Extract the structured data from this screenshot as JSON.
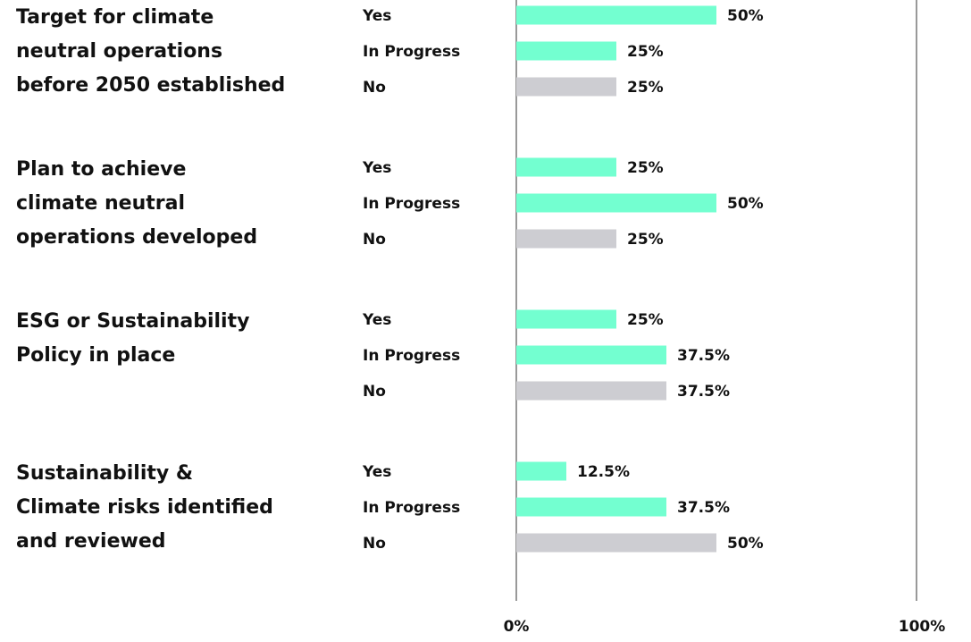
{
  "chart_data": {
    "type": "bar",
    "orientation": "horizontal",
    "categories": [
      [
        "Target for climate",
        "neutral operations",
        "before 2050 established"
      ],
      [
        "Plan to achieve",
        "climate neutral",
        "operations developed"
      ],
      [
        "ESG or Sustainability",
        "Policy in place"
      ],
      [
        "Sustainability &",
        "Climate risks identified",
        "and reviewed"
      ]
    ],
    "series": [
      {
        "name": "Yes",
        "color": "#73ffd0",
        "values": [
          50,
          25,
          25,
          12.5
        ],
        "value_labels": [
          "50%",
          "25%",
          "25%",
          "12.5%"
        ]
      },
      {
        "name": "In Progress",
        "color": "#73ffd0",
        "values": [
          25,
          50,
          37.5,
          37.5
        ],
        "value_labels": [
          "25%",
          "50%",
          "37.5%",
          "37.5%"
        ]
      },
      {
        "name": "No",
        "color": "#cdcdd2",
        "values": [
          25,
          25,
          37.5,
          50
        ],
        "value_labels": [
          "25%",
          "25%",
          "37.5%",
          "50%"
        ]
      }
    ],
    "xlim": [
      0,
      100
    ],
    "xticks": [
      {
        "value": 0,
        "label": "0%"
      },
      {
        "value": 100,
        "label": "100%"
      }
    ],
    "grid": true
  }
}
